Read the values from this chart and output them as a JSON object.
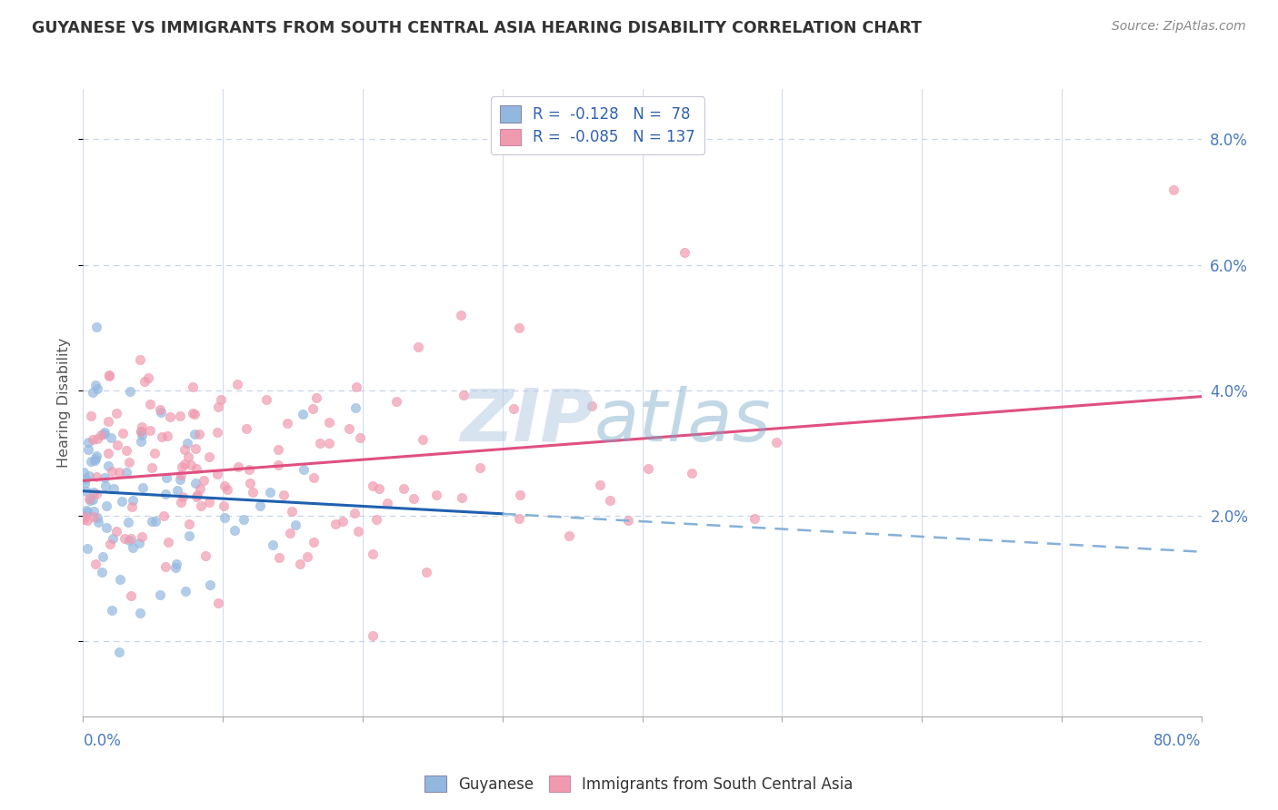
{
  "title": "GUYANESE VS IMMIGRANTS FROM SOUTH CENTRAL ASIA HEARING DISABILITY CORRELATION CHART",
  "source": "Source: ZipAtlas.com",
  "ylabel": "Hearing Disability",
  "xmin": 0.0,
  "xmax": 0.8,
  "ymin": -0.012,
  "ymax": 0.088,
  "yticks": [
    0.0,
    0.02,
    0.04,
    0.06,
    0.08
  ],
  "ytick_labels": [
    "",
    "2.0%",
    "4.0%",
    "6.0%",
    "8.0%"
  ],
  "series1_name": "Guyanese",
  "series1_color": "#93b8e0",
  "series1_R": -0.128,
  "series1_N": 78,
  "series2_name": "Immigrants from South Central Asia",
  "series2_color": "#f09ab0",
  "series2_R": -0.085,
  "series2_N": 137,
  "trend1_color": "#2060b0",
  "trend2_color": "#e05080",
  "trend1_dashed_color": "#85b0d8",
  "background_color": "#ffffff",
  "plot_bg_color": "#ffffff",
  "grid_color": "#c8d4e8",
  "title_color": "#333333",
  "axis_label_color": "#4a7abf",
  "legend_R_color": "#3060b0",
  "seed1": 42,
  "seed2": 7
}
